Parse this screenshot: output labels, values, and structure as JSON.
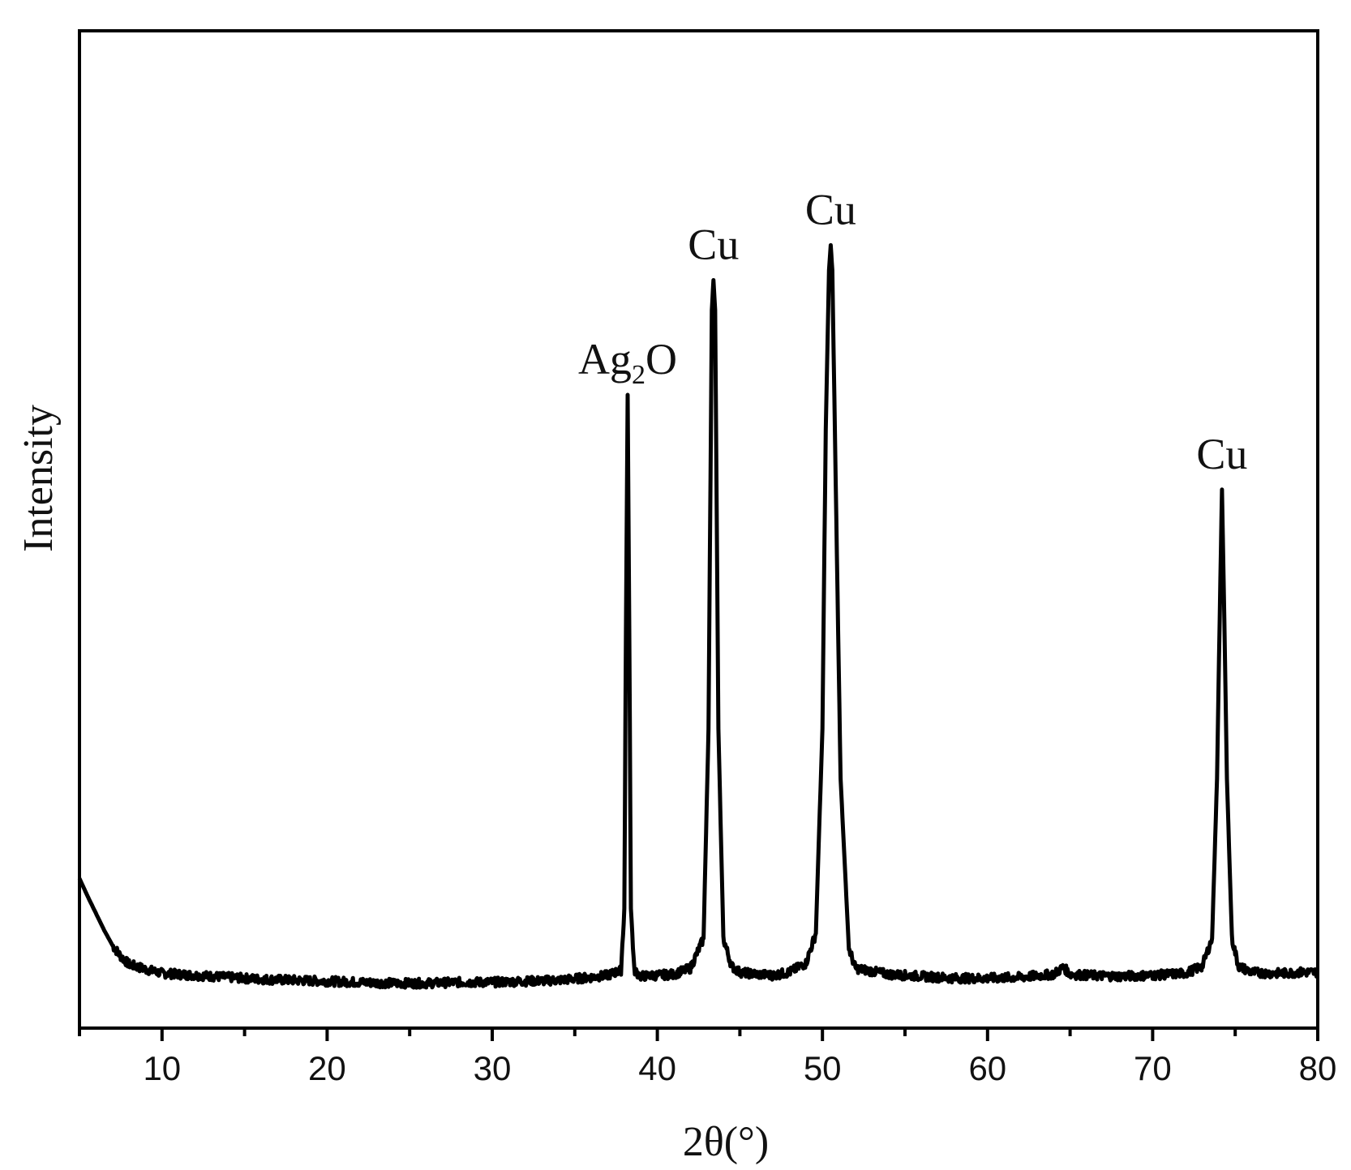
{
  "chart_data": {
    "type": "line",
    "title": "",
    "xlabel": "2θ(°)",
    "ylabel": "Intensity",
    "xlim": [
      5,
      80
    ],
    "ylim": [
      0,
      100
    ],
    "x_ticks": [
      10,
      20,
      30,
      40,
      50,
      60,
      70,
      80
    ],
    "x_tick_labels": [
      "10",
      "20",
      "30",
      "40",
      "50",
      "60",
      "70",
      "80"
    ],
    "x_minor_step": 5,
    "y_ticks_shown": false,
    "grid": false,
    "series": [
      {
        "color": "#000000",
        "x": [
          5,
          5.5,
          6,
          6.5,
          7,
          7.5,
          8,
          9,
          10,
          12,
          14,
          16,
          18,
          20,
          22,
          24,
          26,
          28,
          30,
          32,
          34,
          36,
          37,
          37.8,
          38.0,
          38.1,
          38.2,
          38.3,
          38.4,
          38.6,
          39,
          40,
          41,
          42,
          42.8,
          43.1,
          43.3,
          43.4,
          43.5,
          43.7,
          44.0,
          44.5,
          45,
          46,
          47,
          48,
          49,
          49.6,
          50.0,
          50.2,
          50.4,
          50.5,
          50.6,
          50.8,
          51.1,
          51.6,
          52,
          54,
          56,
          58,
          60,
          62,
          64,
          64.6,
          65,
          66,
          68,
          70,
          72,
          73,
          73.6,
          73.9,
          74.1,
          74.2,
          74.3,
          74.5,
          74.8,
          75.2,
          76,
          77,
          78,
          79,
          80
        ],
        "y": [
          15.0,
          13.2,
          11.5,
          9.8,
          8.3,
          7.2,
          6.4,
          5.9,
          5.5,
          5.3,
          5.1,
          4.9,
          4.8,
          4.7,
          4.6,
          4.5,
          4.5,
          4.6,
          4.6,
          4.7,
          4.8,
          5.1,
          5.3,
          5.8,
          12.0,
          40.0,
          63.5,
          40.0,
          12.0,
          5.8,
          5.2,
          5.3,
          5.4,
          6.0,
          9.0,
          30.0,
          72.0,
          75.0,
          72.0,
          30.0,
          9.0,
          6.2,
          5.6,
          5.4,
          5.3,
          5.6,
          6.5,
          9.5,
          30.0,
          60.0,
          76.0,
          78.5,
          76.0,
          55.0,
          25.0,
          8.0,
          6.0,
          5.4,
          5.2,
          5.0,
          5.0,
          5.1,
          5.4,
          6.1,
          5.4,
          5.3,
          5.2,
          5.3,
          5.5,
          6.2,
          9.0,
          25.0,
          45.0,
          54.0,
          45.0,
          25.0,
          9.0,
          6.2,
          5.6,
          5.5,
          5.5,
          5.6,
          5.6
        ]
      }
    ],
    "annotations": [
      {
        "text": "Ag",
        "sub": "2",
        "suffix": "O",
        "x": 38.2,
        "y": 63.5
      },
      {
        "text": "Cu",
        "sub": "",
        "suffix": "",
        "x": 43.4,
        "y": 75.0
      },
      {
        "text": "Cu",
        "sub": "",
        "suffix": "",
        "x": 50.5,
        "y": 78.5
      },
      {
        "text": "Cu",
        "sub": "",
        "suffix": "",
        "x": 74.2,
        "y": 54.0
      }
    ]
  }
}
